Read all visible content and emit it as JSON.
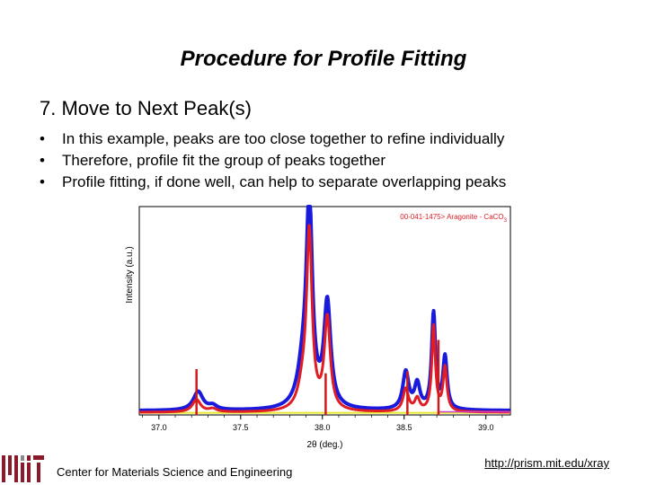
{
  "slide": {
    "title": "Procedure for Profile Fitting",
    "heading": "7. Move to Next Peak(s)",
    "bullets": [
      "In this example, peaks are too close together to refine individually",
      "Therefore, profile fit the group of peaks together",
      "Profile fitting, if done well, can help to separate overlapping peaks"
    ]
  },
  "footer": {
    "org": "Center for Materials Science and Engineering",
    "url": "http://prism.mit.edu/xray",
    "logo_letters": "MIT"
  },
  "chart_data": {
    "type": "line",
    "xlabel": "2θ (deg.)",
    "ylabel": "Intensity (a.u.)",
    "xlim": [
      36.88,
      39.15
    ],
    "ylim": [
      0,
      100
    ],
    "x_ticks": [
      "37.0",
      "37.5",
      "38.0",
      "38.5",
      "39.0"
    ],
    "x_tick_values": [
      37.0,
      37.5,
      38.0,
      38.5,
      39.0
    ],
    "legend": "00-041-1475> Aragonite - CaCO",
    "legend_subscript": "3",
    "grid": false,
    "reference_lines": [
      {
        "x": 37.23,
        "height": 22
      },
      {
        "x": 38.02,
        "height": 20
      },
      {
        "x": 38.52,
        "height": 21
      },
      {
        "x": 38.71,
        "height": 36
      }
    ],
    "series": [
      {
        "color": "#1a1adc",
        "peaks": [
          {
            "c": 37.24,
            "h": 9,
            "w": 0.035
          },
          {
            "c": 37.33,
            "h": 2,
            "w": 0.03
          },
          {
            "c": 37.92,
            "h": 98,
            "w": 0.022
          },
          {
            "c": 37.88,
            "h": 16,
            "w": 0.04
          },
          {
            "c": 38.03,
            "h": 50,
            "w": 0.025
          },
          {
            "c": 38.51,
            "h": 18,
            "w": 0.022
          },
          {
            "c": 38.58,
            "h": 12,
            "w": 0.02
          },
          {
            "c": 38.68,
            "h": 46,
            "w": 0.014
          },
          {
            "c": 38.75,
            "h": 25,
            "w": 0.015
          }
        ],
        "baseline": 2
      },
      {
        "color": "#e01c24",
        "peaks": [
          {
            "c": 37.23,
            "h": 6,
            "w": 0.03
          },
          {
            "c": 37.33,
            "h": 1.5,
            "w": 0.03
          },
          {
            "c": 37.92,
            "h": 84,
            "w": 0.02
          },
          {
            "c": 37.88,
            "h": 10,
            "w": 0.035
          },
          {
            "c": 38.03,
            "h": 44,
            "w": 0.022
          },
          {
            "c": 38.51,
            "h": 11,
            "w": 0.02
          },
          {
            "c": 38.58,
            "h": 6,
            "w": 0.018
          },
          {
            "c": 38.68,
            "h": 41,
            "w": 0.013
          },
          {
            "c": 38.75,
            "h": 21,
            "w": 0.014
          }
        ],
        "baseline": 1.2
      }
    ],
    "background_line": {
      "color": "#e6e62e",
      "value": 1
    },
    "aux_line": {
      "color": "#d040d0",
      "from": 38.71,
      "to": 39.15,
      "value": 1.5
    }
  }
}
